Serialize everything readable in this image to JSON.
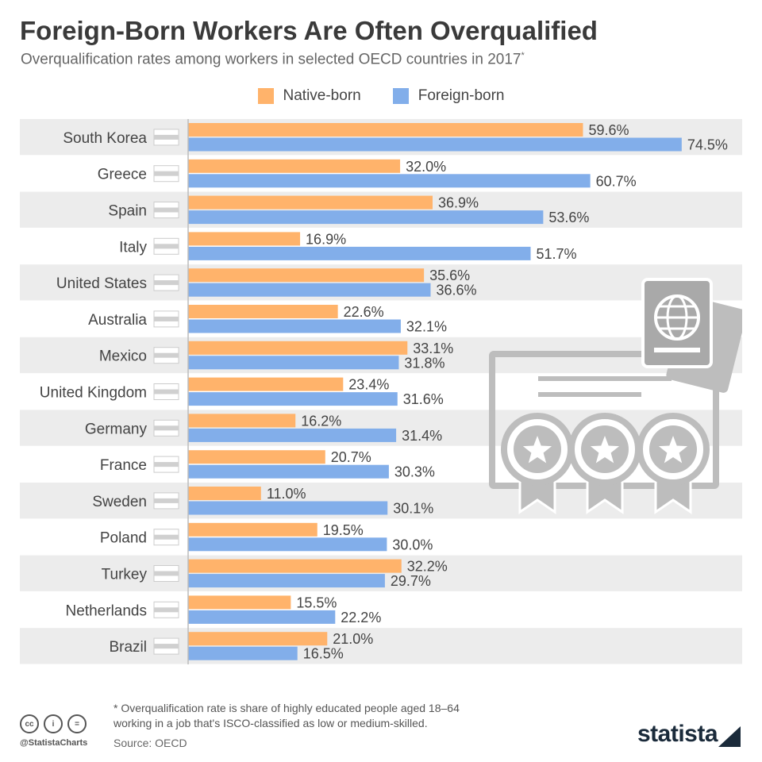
{
  "title": "Foreign-Born Workers Are Often Overqualified",
  "subtitle": "Overqualification rates among workers in selected OECD countries in 2017",
  "subtitle_mark": "*",
  "colors": {
    "native": "#ffb36b",
    "foreign": "#82aeea",
    "stripe": "#ececec",
    "axis": "#bbbbbb",
    "label": "#444444",
    "icon": "#bdbdbd"
  },
  "chart_data": {
    "type": "bar",
    "orientation": "horizontal",
    "categories": [
      "South Korea",
      "Greece",
      "Spain",
      "Italy",
      "United States",
      "Australia",
      "Mexico",
      "United Kingdom",
      "Germany",
      "France",
      "Sweden",
      "Poland",
      "Turkey",
      "Netherlands",
      "Brazil"
    ],
    "series": [
      {
        "name": "Native-born",
        "values": [
          59.6,
          32.0,
          36.9,
          16.9,
          35.6,
          22.6,
          33.1,
          23.4,
          16.2,
          20.7,
          11.0,
          19.5,
          32.2,
          15.5,
          21.0
        ],
        "labels": [
          "59.6%",
          "32.0%",
          "36.9%",
          "16.9%",
          "35.6%",
          "22.6%",
          "33.1%",
          "23.4%",
          "16.2%",
          "20.7%",
          "11.0%",
          "19.5%",
          "32.2%",
          "15.5%",
          "21.0%"
        ]
      },
      {
        "name": "Foreign-born",
        "values": [
          74.5,
          60.7,
          53.6,
          51.7,
          36.6,
          32.1,
          31.8,
          31.6,
          31.4,
          30.3,
          30.1,
          30.0,
          29.7,
          22.2,
          16.5
        ],
        "labels": [
          "74.5%",
          "60.7%",
          "53.6%",
          "51.7%",
          "36.6%",
          "32.1%",
          "31.8%",
          "31.6%",
          "31.4%",
          "30.3%",
          "30.1%",
          "30.0%",
          "29.7%",
          "22.2%",
          "16.5%"
        ]
      }
    ],
    "xlim": [
      0,
      75
    ],
    "legend": "top-center"
  },
  "footnote": "* Overqualification rate is share of highly educated people aged 18–64\n   working in a job that's ISCO-classified as low or medium-skilled.",
  "source": "Source: OECD",
  "handle": "@StatistaCharts",
  "brand": "statista",
  "cc_icons": [
    "cc",
    "i",
    "="
  ]
}
